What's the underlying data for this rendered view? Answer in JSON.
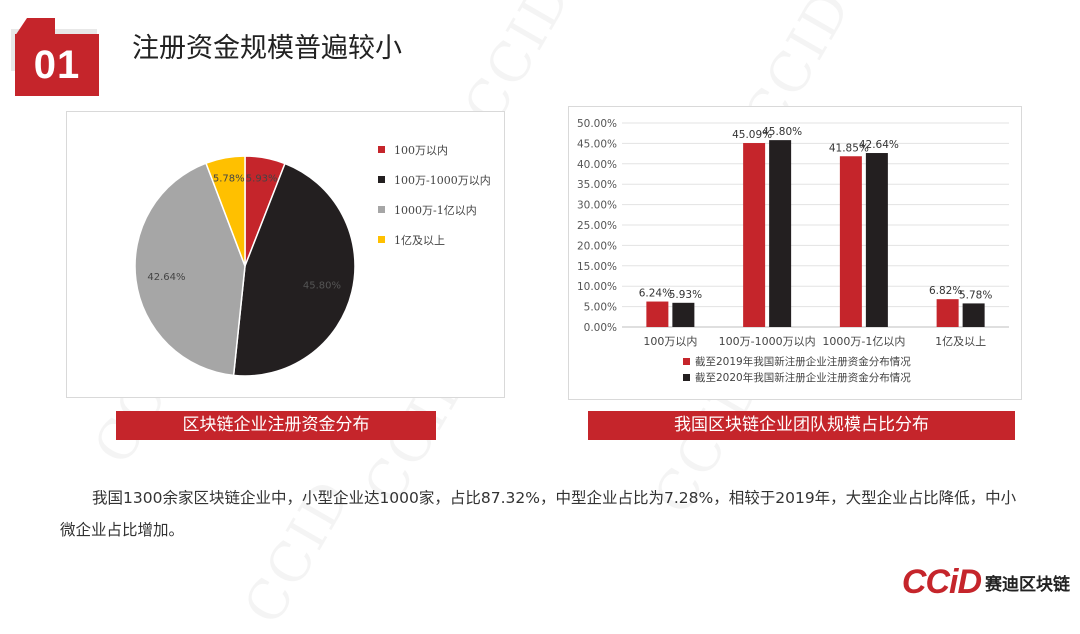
{
  "section": {
    "number": "01",
    "title": "注册资金规模普遍较小"
  },
  "colors": {
    "accent": "#c5252b",
    "dark": "#231f20",
    "gray": "#a6a6a6",
    "gold": "#ffc000"
  },
  "chart_data": [
    {
      "type": "pie",
      "categories": [
        "100万以内",
        "100万-1000万以内",
        "1000万-1亿以内",
        "1亿及以上"
      ],
      "values": [
        5.93,
        45.8,
        42.64,
        5.78
      ],
      "labels": [
        "5.93%",
        "45.80%",
        "42.64%",
        "5.78%"
      ],
      "colors": [
        "#c5252b",
        "#231f20",
        "#a6a6a6",
        "#ffc000"
      ],
      "legend_position": "right",
      "caption": "区块链企业注册资金分布"
    },
    {
      "type": "bar",
      "categories": [
        "100万以内",
        "100万-1000万以内",
        "1000万-1亿以内",
        "1亿及以上"
      ],
      "series": [
        {
          "name": "截至2019年我国新注册企业注册资金分布情况",
          "values": [
            6.24,
            45.09,
            41.85,
            6.82
          ],
          "labels": [
            "6.24%",
            "45.09%",
            "41.85%",
            "6.82%"
          ],
          "color": "#c5252b"
        },
        {
          "name": "截至2020年我国新注册企业注册资金分布情况",
          "values": [
            5.93,
            45.8,
            42.64,
            5.78
          ],
          "labels": [
            "5.93%",
            "45.80%",
            "42.64%",
            "5.78%"
          ],
          "color": "#231f20"
        }
      ],
      "ylim": [
        0,
        50
      ],
      "yticks": [
        "0.00%",
        "5.00%",
        "10.00%",
        "15.00%",
        "20.00%",
        "25.00%",
        "30.00%",
        "35.00%",
        "40.00%",
        "45.00%",
        "50.00%"
      ],
      "grid": true,
      "legend_position": "bottom",
      "caption": "我国区块链企业团队规模占比分布"
    }
  ],
  "body": "我国1300余家区块链企业中，小型企业达1000家，占比87.32%，中型企业占比为7.28%，相较于2019年，大型企业占比降低，中小微企业占比增加。",
  "logo": {
    "mark": "CCiD",
    "text": "赛迪区块链"
  },
  "watermark": "CCID"
}
